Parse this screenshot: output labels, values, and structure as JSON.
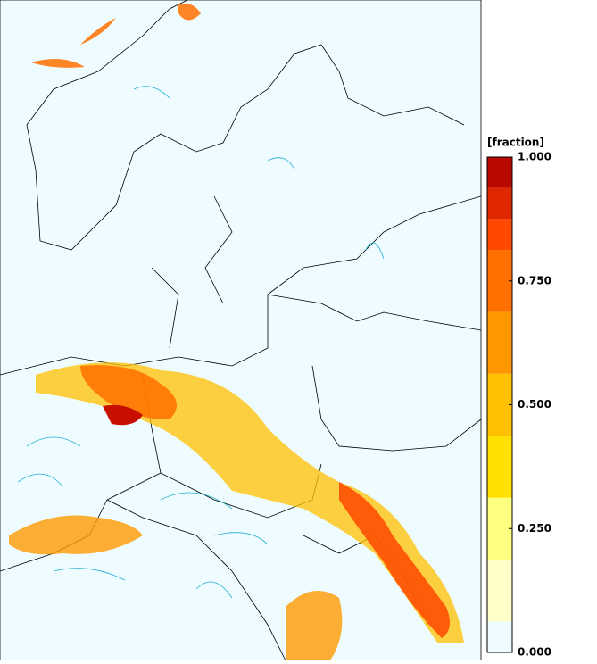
{
  "colorbar": {
    "title": "[fraction]",
    "levels": [
      0,
      0.0625,
      0.1875,
      0.3125,
      0.4375,
      0.5625,
      0.6875,
      0.8125,
      0.875,
      0.9375,
      1
    ],
    "colors": [
      "#eefcff",
      "#ffffc8",
      "#ffff80",
      "#ffe000",
      "#ffc000",
      "#ff9800",
      "#ff7000",
      "#ff4800",
      "#e02800",
      "#b80800"
    ],
    "lim": [
      0,
      1
    ],
    "ticks": [
      {
        "value": 0,
        "label": "0.000"
      },
      {
        "value": 0.25,
        "label": "0.250"
      },
      {
        "value": 0.5,
        "label": "0.500"
      },
      {
        "value": 0.75,
        "label": "0.750"
      },
      {
        "value": 1,
        "label": "1.000"
      }
    ]
  }
}
